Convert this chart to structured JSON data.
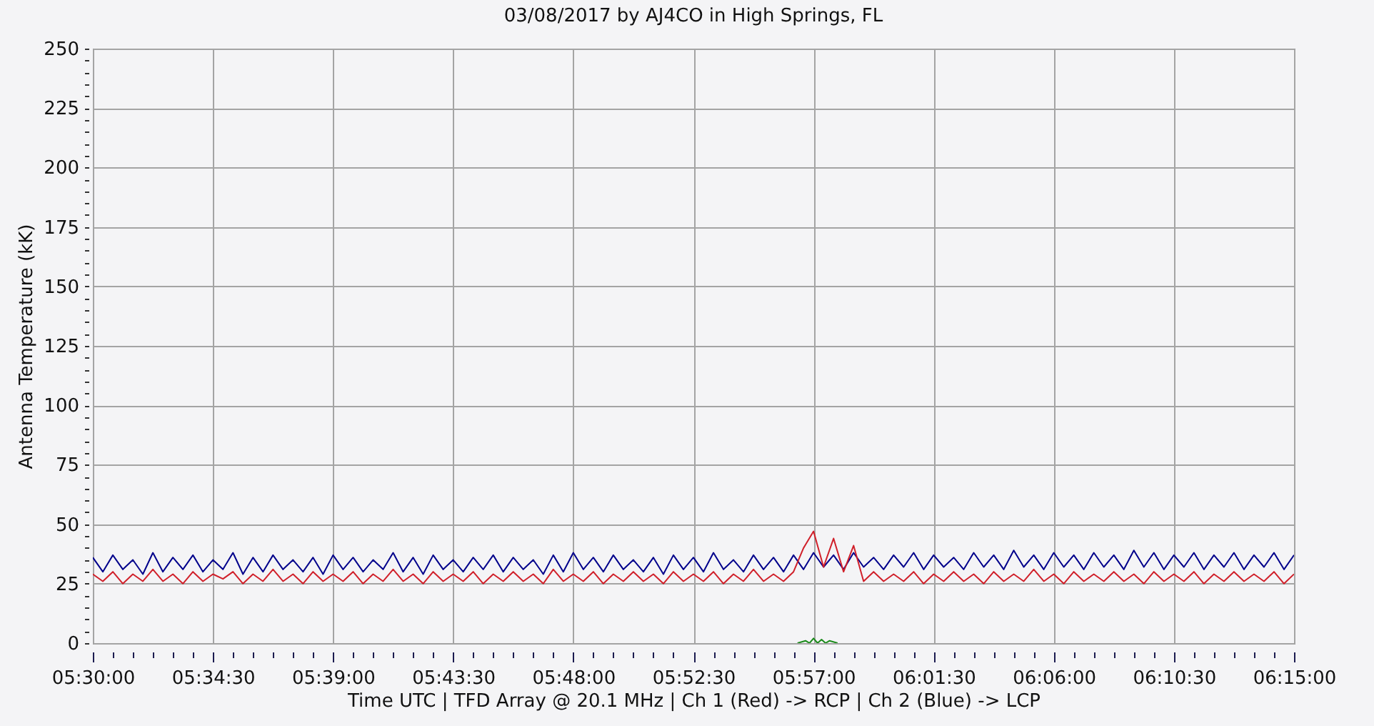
{
  "chart_data": {
    "type": "line",
    "title": "03/08/2017  by  AJ4CO  in  High Springs, FL",
    "xlabel": "Time UTC    |    TFD Array @ 20.1 MHz    |    Ch 1 (Red) -> RCP    |    Ch 2 (Blue)  -> LCP",
    "ylabel": "Antenna Temperature (kK)",
    "x": [
      5.5,
      5.50625,
      5.5125,
      5.51875,
      5.525,
      5.53125,
      5.5375,
      5.54375,
      5.55,
      5.55625,
      5.5625,
      5.56875,
      5.575,
      5.58125,
      5.5875,
      5.59375,
      5.6,
      5.60625,
      5.6125,
      5.61875,
      5.625,
      5.63125,
      5.6375,
      5.64375,
      5.65,
      5.65625,
      5.6625,
      5.66875,
      5.675,
      5.68125,
      5.6875,
      5.69375,
      5.7,
      5.70625,
      5.7125,
      5.71875,
      5.725,
      5.73125,
      5.7375,
      5.74375,
      5.75,
      5.75625,
      5.7625,
      5.76875,
      5.775,
      5.78125,
      5.7875,
      5.79375,
      5.8,
      5.80625,
      5.8125,
      5.81875,
      5.825,
      5.83125,
      5.8375,
      5.84375,
      5.85,
      5.85625,
      5.8625,
      5.86875,
      5.875,
      5.88125,
      5.8875,
      5.89375,
      5.9,
      5.90625,
      5.9125,
      5.91875,
      5.925,
      5.93125,
      5.9375,
      5.94375,
      5.95,
      5.95625,
      5.9625,
      5.96875,
      5.975,
      5.98125,
      5.9875,
      5.99375,
      6.0,
      6.00625,
      6.0125,
      6.01875,
      6.025,
      6.03125,
      6.0375,
      6.04375,
      6.05,
      6.05625,
      6.0625,
      6.06875,
      6.075,
      6.08125,
      6.0875,
      6.09375,
      6.1,
      6.10625,
      6.1125,
      6.11875,
      6.125,
      6.13125,
      6.1375,
      6.14375,
      6.15,
      6.15625,
      6.1625,
      6.16875,
      6.175,
      6.18125,
      6.1875,
      6.19375,
      6.2,
      6.20625,
      6.2125,
      6.21875,
      6.225,
      6.23125,
      6.2375,
      6.24375,
      6.25
    ],
    "xlim": [
      5.5,
      6.25
    ],
    "xticks": [
      {
        "value": 5.5,
        "label": "05:30:00"
      },
      {
        "value": 5.5125,
        "label": null
      },
      {
        "value": 5.525,
        "label": null
      },
      {
        "value": 5.5375,
        "label": null
      },
      {
        "value": 5.55,
        "label": null
      },
      {
        "value": 5.5625,
        "label": null
      },
      {
        "value": 5.575,
        "label": "05:34:30"
      },
      {
        "value": 5.5875,
        "label": null
      },
      {
        "value": 5.6,
        "label": null
      },
      {
        "value": 5.6125,
        "label": null
      },
      {
        "value": 5.625,
        "label": null
      },
      {
        "value": 5.6375,
        "label": null
      },
      {
        "value": 5.65,
        "label": "05:39:00"
      },
      {
        "value": 5.6625,
        "label": null
      },
      {
        "value": 5.675,
        "label": null
      },
      {
        "value": 5.6875,
        "label": null
      },
      {
        "value": 5.7,
        "label": null
      },
      {
        "value": 5.7125,
        "label": null
      },
      {
        "value": 5.725,
        "label": "05:43:30"
      },
      {
        "value": 5.7375,
        "label": null
      },
      {
        "value": 5.75,
        "label": null
      },
      {
        "value": 5.7625,
        "label": null
      },
      {
        "value": 5.775,
        "label": null
      },
      {
        "value": 5.7875,
        "label": null
      },
      {
        "value": 5.8,
        "label": "05:48:00"
      },
      {
        "value": 5.8125,
        "label": null
      },
      {
        "value": 5.825,
        "label": null
      },
      {
        "value": 5.8375,
        "label": null
      },
      {
        "value": 5.85,
        "label": null
      },
      {
        "value": 5.8625,
        "label": null
      },
      {
        "value": 5.875,
        "label": "05:52:30"
      },
      {
        "value": 5.8875,
        "label": null
      },
      {
        "value": 5.9,
        "label": null
      },
      {
        "value": 5.9125,
        "label": null
      },
      {
        "value": 5.925,
        "label": null
      },
      {
        "value": 5.9375,
        "label": null
      },
      {
        "value": 5.95,
        "label": "05:57:00"
      },
      {
        "value": 5.9625,
        "label": null
      },
      {
        "value": 5.975,
        "label": null
      },
      {
        "value": 5.9875,
        "label": null
      },
      {
        "value": 6.0,
        "label": null
      },
      {
        "value": 6.0125,
        "label": null
      },
      {
        "value": 6.025,
        "label": "06:01:30"
      },
      {
        "value": 6.0375,
        "label": null
      },
      {
        "value": 6.05,
        "label": null
      },
      {
        "value": 6.0625,
        "label": null
      },
      {
        "value": 6.075,
        "label": null
      },
      {
        "value": 6.0875,
        "label": null
      },
      {
        "value": 6.1,
        "label": "06:06:00"
      },
      {
        "value": 6.1125,
        "label": null
      },
      {
        "value": 6.125,
        "label": null
      },
      {
        "value": 6.1375,
        "label": null
      },
      {
        "value": 6.15,
        "label": null
      },
      {
        "value": 6.1625,
        "label": null
      },
      {
        "value": 6.175,
        "label": "06:10:30"
      },
      {
        "value": 6.1875,
        "label": null
      },
      {
        "value": 6.2,
        "label": null
      },
      {
        "value": 6.2125,
        "label": null
      },
      {
        "value": 6.225,
        "label": null
      },
      {
        "value": 6.2375,
        "label": null
      },
      {
        "value": 6.25,
        "label": "06:15:00"
      }
    ],
    "ylim": [
      0,
      250
    ],
    "yticks": [
      0,
      {
        "value": 5,
        "label": null
      },
      {
        "value": 10,
        "label": null
      },
      {
        "value": 15,
        "label": null
      },
      {
        "value": 20,
        "label": null
      },
      25,
      {
        "value": 30,
        "label": null
      },
      {
        "value": 35,
        "label": null
      },
      {
        "value": 40,
        "label": null
      },
      {
        "value": 45,
        "label": null
      },
      50,
      {
        "value": 55,
        "label": null
      },
      {
        "value": 60,
        "label": null
      },
      {
        "value": 65,
        "label": null
      },
      {
        "value": 70,
        "label": null
      },
      75,
      {
        "value": 80,
        "label": null
      },
      {
        "value": 85,
        "label": null
      },
      {
        "value": 90,
        "label": null
      },
      {
        "value": 95,
        "label": null
      },
      100,
      {
        "value": 105,
        "label": null
      },
      {
        "value": 110,
        "label": null
      },
      {
        "value": 115,
        "label": null
      },
      {
        "value": 120,
        "label": null
      },
      125,
      {
        "value": 130,
        "label": null
      },
      {
        "value": 135,
        "label": null
      },
      {
        "value": 140,
        "label": null
      },
      {
        "value": 145,
        "label": null
      },
      150,
      {
        "value": 155,
        "label": null
      },
      {
        "value": 160,
        "label": null
      },
      {
        "value": 165,
        "label": null
      },
      {
        "value": 170,
        "label": null
      },
      175,
      {
        "value": 180,
        "label": null
      },
      {
        "value": 185,
        "label": null
      },
      {
        "value": 190,
        "label": null
      },
      {
        "value": 195,
        "label": null
      },
      200,
      {
        "value": 205,
        "label": null
      },
      {
        "value": 210,
        "label": null
      },
      {
        "value": 215,
        "label": null
      },
      {
        "value": 220,
        "label": null
      },
      225,
      {
        "value": 230,
        "label": null
      },
      {
        "value": 235,
        "label": null
      },
      {
        "value": 240,
        "label": null
      },
      {
        "value": 245,
        "label": null
      },
      250
    ],
    "grid": true,
    "series": [
      {
        "color": "#00008b",
        "values": [
          36,
          30,
          37,
          31,
          35,
          29,
          38,
          30,
          36,
          31,
          37,
          30,
          35,
          31,
          38,
          29,
          36,
          30,
          37,
          31,
          35,
          30,
          36,
          29,
          37,
          31,
          36,
          30,
          35,
          31,
          38,
          30,
          36,
          29,
          37,
          31,
          35,
          30,
          36,
          31,
          37,
          30,
          36,
          31,
          35,
          29,
          37,
          30,
          38,
          31,
          36,
          30,
          37,
          31,
          35,
          30,
          36,
          29,
          37,
          31,
          36,
          30,
          38,
          31,
          35,
          30,
          37,
          31,
          36,
          30,
          37,
          31,
          38,
          32,
          37,
          31,
          38,
          32,
          36,
          31,
          37,
          32,
          38,
          31,
          37,
          32,
          36,
          31,
          38,
          32,
          37,
          31,
          39,
          32,
          37,
          31,
          38,
          32,
          37,
          31,
          38,
          32,
          37,
          31,
          39,
          32,
          38,
          31,
          37,
          32,
          38,
          31,
          37,
          32,
          38,
          31,
          37,
          32,
          38,
          31,
          37
        ]
      },
      {
        "color": "#d0202a",
        "values": [
          29,
          26,
          30,
          25,
          29,
          26,
          31,
          26,
          29,
          25,
          30,
          26,
          29,
          27,
          30,
          25,
          29,
          26,
          31,
          26,
          29,
          25,
          30,
          26,
          29,
          26,
          30,
          25,
          29,
          26,
          31,
          26,
          29,
          25,
          30,
          26,
          29,
          26,
          30,
          25,
          29,
          26,
          30,
          26,
          29,
          25,
          31,
          26,
          29,
          26,
          30,
          25,
          29,
          26,
          30,
          26,
          29,
          25,
          30,
          26,
          29,
          26,
          30,
          25,
          29,
          26,
          31,
          26,
          29,
          26,
          30,
          40,
          47,
          32,
          44,
          30,
          41,
          26,
          30,
          26,
          29,
          26,
          30,
          25,
          29,
          26,
          30,
          26,
          29,
          25,
          30,
          26,
          29,
          26,
          31,
          26,
          29,
          25,
          30,
          26,
          29,
          26,
          30,
          26,
          29,
          25,
          30,
          26,
          29,
          26,
          30,
          25,
          29,
          26,
          30,
          26,
          29,
          26,
          30,
          25,
          29
        ]
      },
      {
        "color": "#1a8a1a",
        "x": [
          5.94,
          5.945,
          5.9475,
          5.95,
          5.9525,
          5.955,
          5.9575,
          5.96,
          5.965
        ],
        "values": [
          0,
          1,
          0,
          2,
          0,
          1.5,
          0,
          1,
          0
        ]
      }
    ]
  }
}
